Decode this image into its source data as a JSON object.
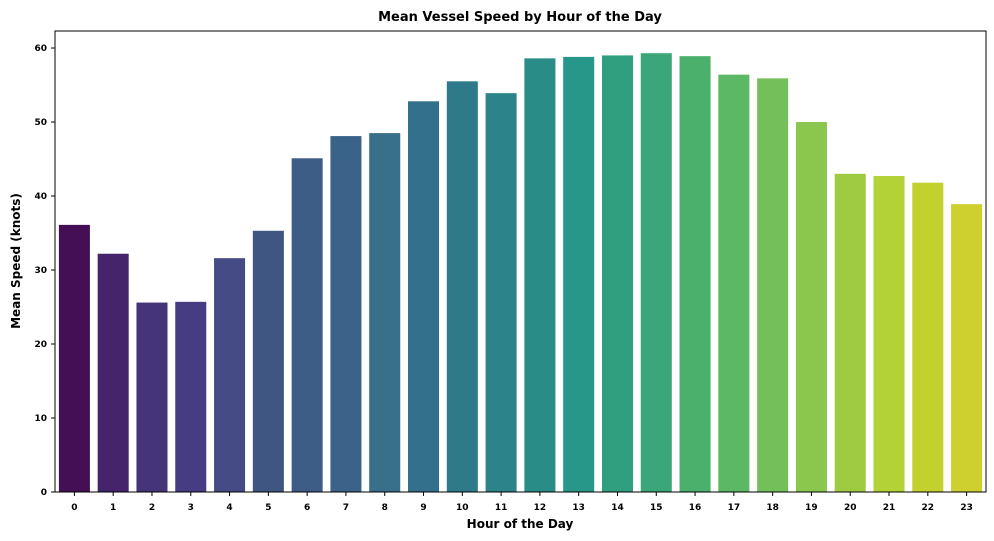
{
  "chart_data": {
    "type": "bar",
    "title": "Mean Vessel Speed by Hour of the Day",
    "xlabel": "Hour of the Day",
    "ylabel": "Mean Speed (knots)",
    "categories": [
      "0",
      "1",
      "2",
      "3",
      "4",
      "5",
      "6",
      "7",
      "8",
      "9",
      "10",
      "11",
      "12",
      "13",
      "14",
      "15",
      "16",
      "17",
      "18",
      "19",
      "20",
      "21",
      "22",
      "23"
    ],
    "values": [
      36.1,
      32.2,
      25.6,
      25.7,
      31.6,
      35.3,
      45.1,
      48.1,
      48.5,
      52.8,
      55.5,
      53.9,
      58.6,
      58.8,
      59.0,
      59.3,
      58.9,
      56.4,
      55.9,
      50.0,
      43.0,
      42.7,
      41.8,
      38.9
    ],
    "ylim": [
      0,
      62.3
    ],
    "yticks": [
      0,
      10,
      20,
      30,
      40,
      50,
      60
    ],
    "palette": "viridis",
    "colors": [
      "#440f54",
      "#46246c",
      "#463479",
      "#453c82",
      "#454b84",
      "#3f5683",
      "#3d5d87",
      "#3b6389",
      "#386f89",
      "#33708b",
      "#2e7a8b",
      "#2c848a",
      "#2a8c86",
      "#27978a",
      "#2f9f7f",
      "#3aa679",
      "#4ab06b",
      "#5cb864",
      "#74bf5a",
      "#8bc64e",
      "#9fcb43",
      "#b3d238",
      "#c2d12d",
      "#cdd02e"
    ],
    "grid": false,
    "legend": "none"
  }
}
